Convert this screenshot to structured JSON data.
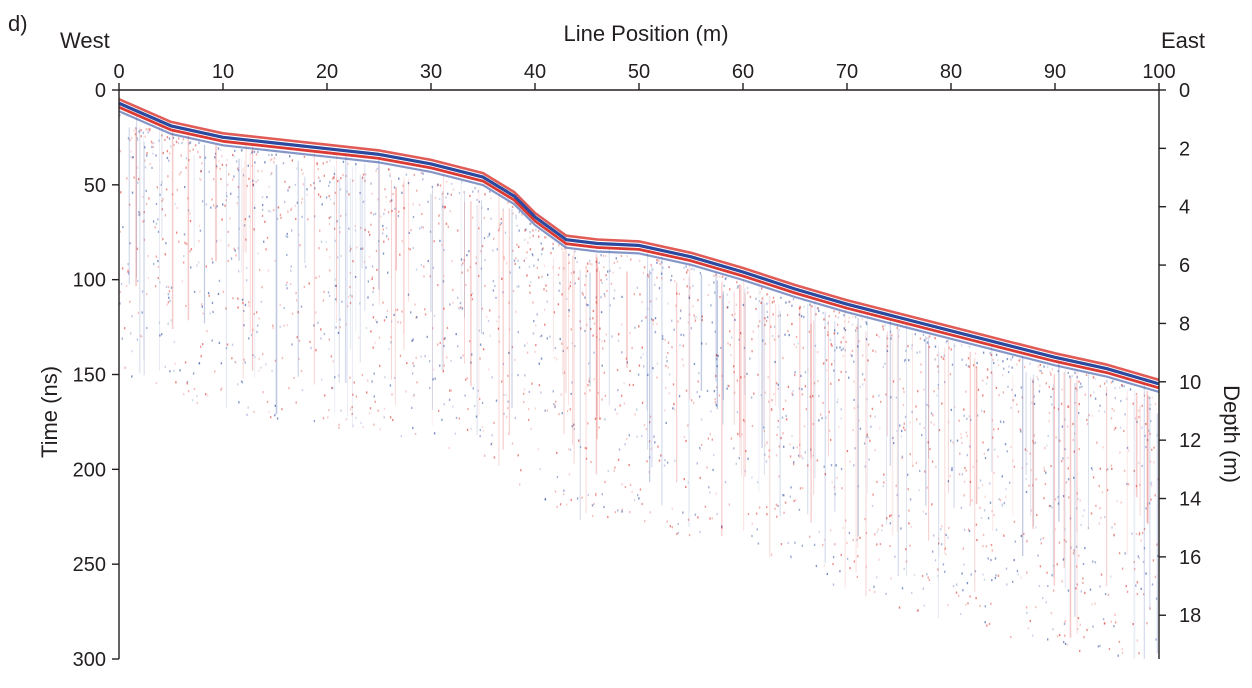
{
  "panel_label": "d)",
  "orientation": {
    "left": "West",
    "right": "East"
  },
  "chart_data": {
    "type": "radargram",
    "xlabel": "Line Position (m)",
    "ylabel_left": "Time (ns)",
    "ylabel_right": "Depth (m)",
    "xlim": [
      0,
      100
    ],
    "ylim_time": [
      0,
      300
    ],
    "ylim_depth": [
      0,
      19.5
    ],
    "x_ticks": [
      0,
      10,
      20,
      30,
      40,
      50,
      60,
      70,
      80,
      90,
      100
    ],
    "time_ticks": [
      0,
      50,
      100,
      150,
      200,
      250,
      300
    ],
    "depth_ticks": [
      0,
      2,
      4,
      6,
      8,
      10,
      12,
      14,
      16,
      18
    ],
    "surface_reflection": {
      "x": [
        0,
        5,
        10,
        15,
        20,
        25,
        30,
        35,
        38,
        40,
        43,
        46,
        50,
        55,
        60,
        65,
        70,
        75,
        80,
        85,
        90,
        95,
        100
      ],
      "time": [
        8,
        20,
        26,
        29,
        32,
        35,
        40,
        47,
        57,
        68,
        80,
        82,
        83,
        89,
        97,
        106,
        114,
        121,
        128,
        135,
        142,
        148,
        156
      ]
    },
    "signal_cutoff": {
      "x": [
        0,
        5,
        10,
        15,
        20,
        25,
        30,
        35,
        40,
        43,
        46,
        50,
        55,
        60,
        65,
        70,
        75,
        80,
        85,
        90,
        95,
        100
      ],
      "time": [
        150,
        160,
        170,
        174,
        177,
        181,
        186,
        193,
        215,
        227,
        227,
        226,
        237,
        248,
        256,
        265,
        273,
        281,
        288,
        294,
        299,
        303
      ]
    },
    "colors": {
      "positive": "#d7261e",
      "negative": "#1f3f9a"
    }
  }
}
